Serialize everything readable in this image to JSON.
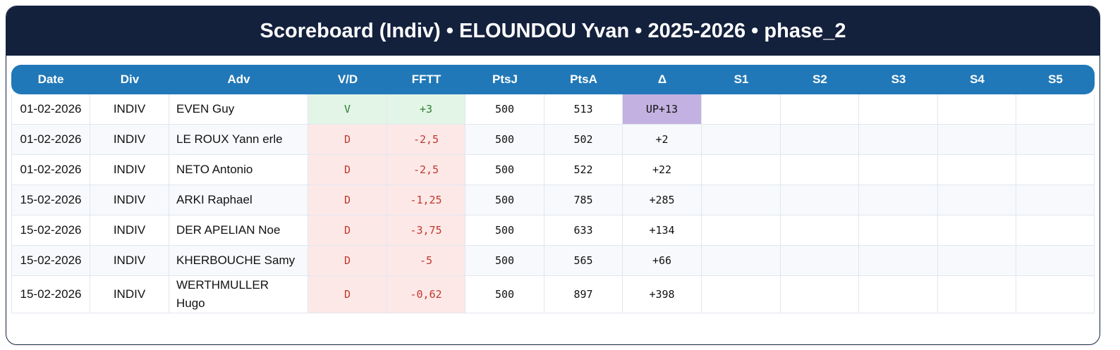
{
  "header": {
    "title": "Scoreboard (Indiv) • ELOUNDOU Yvan • 2025-2026 • phase_2"
  },
  "table": {
    "columns": [
      "Date",
      "Div",
      "Adv",
      "V/D",
      "FFTT",
      "PtsJ",
      "PtsA",
      "Δ",
      "S1",
      "S2",
      "S3",
      "S4",
      "S5"
    ],
    "rows": [
      [
        "01-02-2026",
        "INDIV",
        "EVEN Guy",
        "V",
        "+3",
        "500",
        "513",
        "UP+13"
      ],
      [
        "01-02-2026",
        "INDIV",
        "LE ROUX Yann erle",
        "D",
        "-2,5",
        "500",
        "502",
        "+2"
      ],
      [
        "01-02-2026",
        "INDIV",
        "NETO Antonio",
        "D",
        "-2,5",
        "500",
        "522",
        "+22"
      ],
      [
        "15-02-2026",
        "INDIV",
        "ARKI Raphael",
        "D",
        "-1,25",
        "500",
        "785",
        "+285"
      ],
      [
        "15-02-2026",
        "INDIV",
        "DER APELIAN Noe",
        "D",
        "-3,75",
        "500",
        "633",
        "+134"
      ],
      [
        "15-02-2026",
        "INDIV",
        "KHERBOUCHE Samy",
        "D",
        "-5",
        "500",
        "565",
        "+66"
      ],
      [
        "15-02-2026",
        "INDIV",
        "WERTHMULLER Hugo",
        "D",
        "-0,62",
        "500",
        "897",
        "+398"
      ]
    ]
  }
}
